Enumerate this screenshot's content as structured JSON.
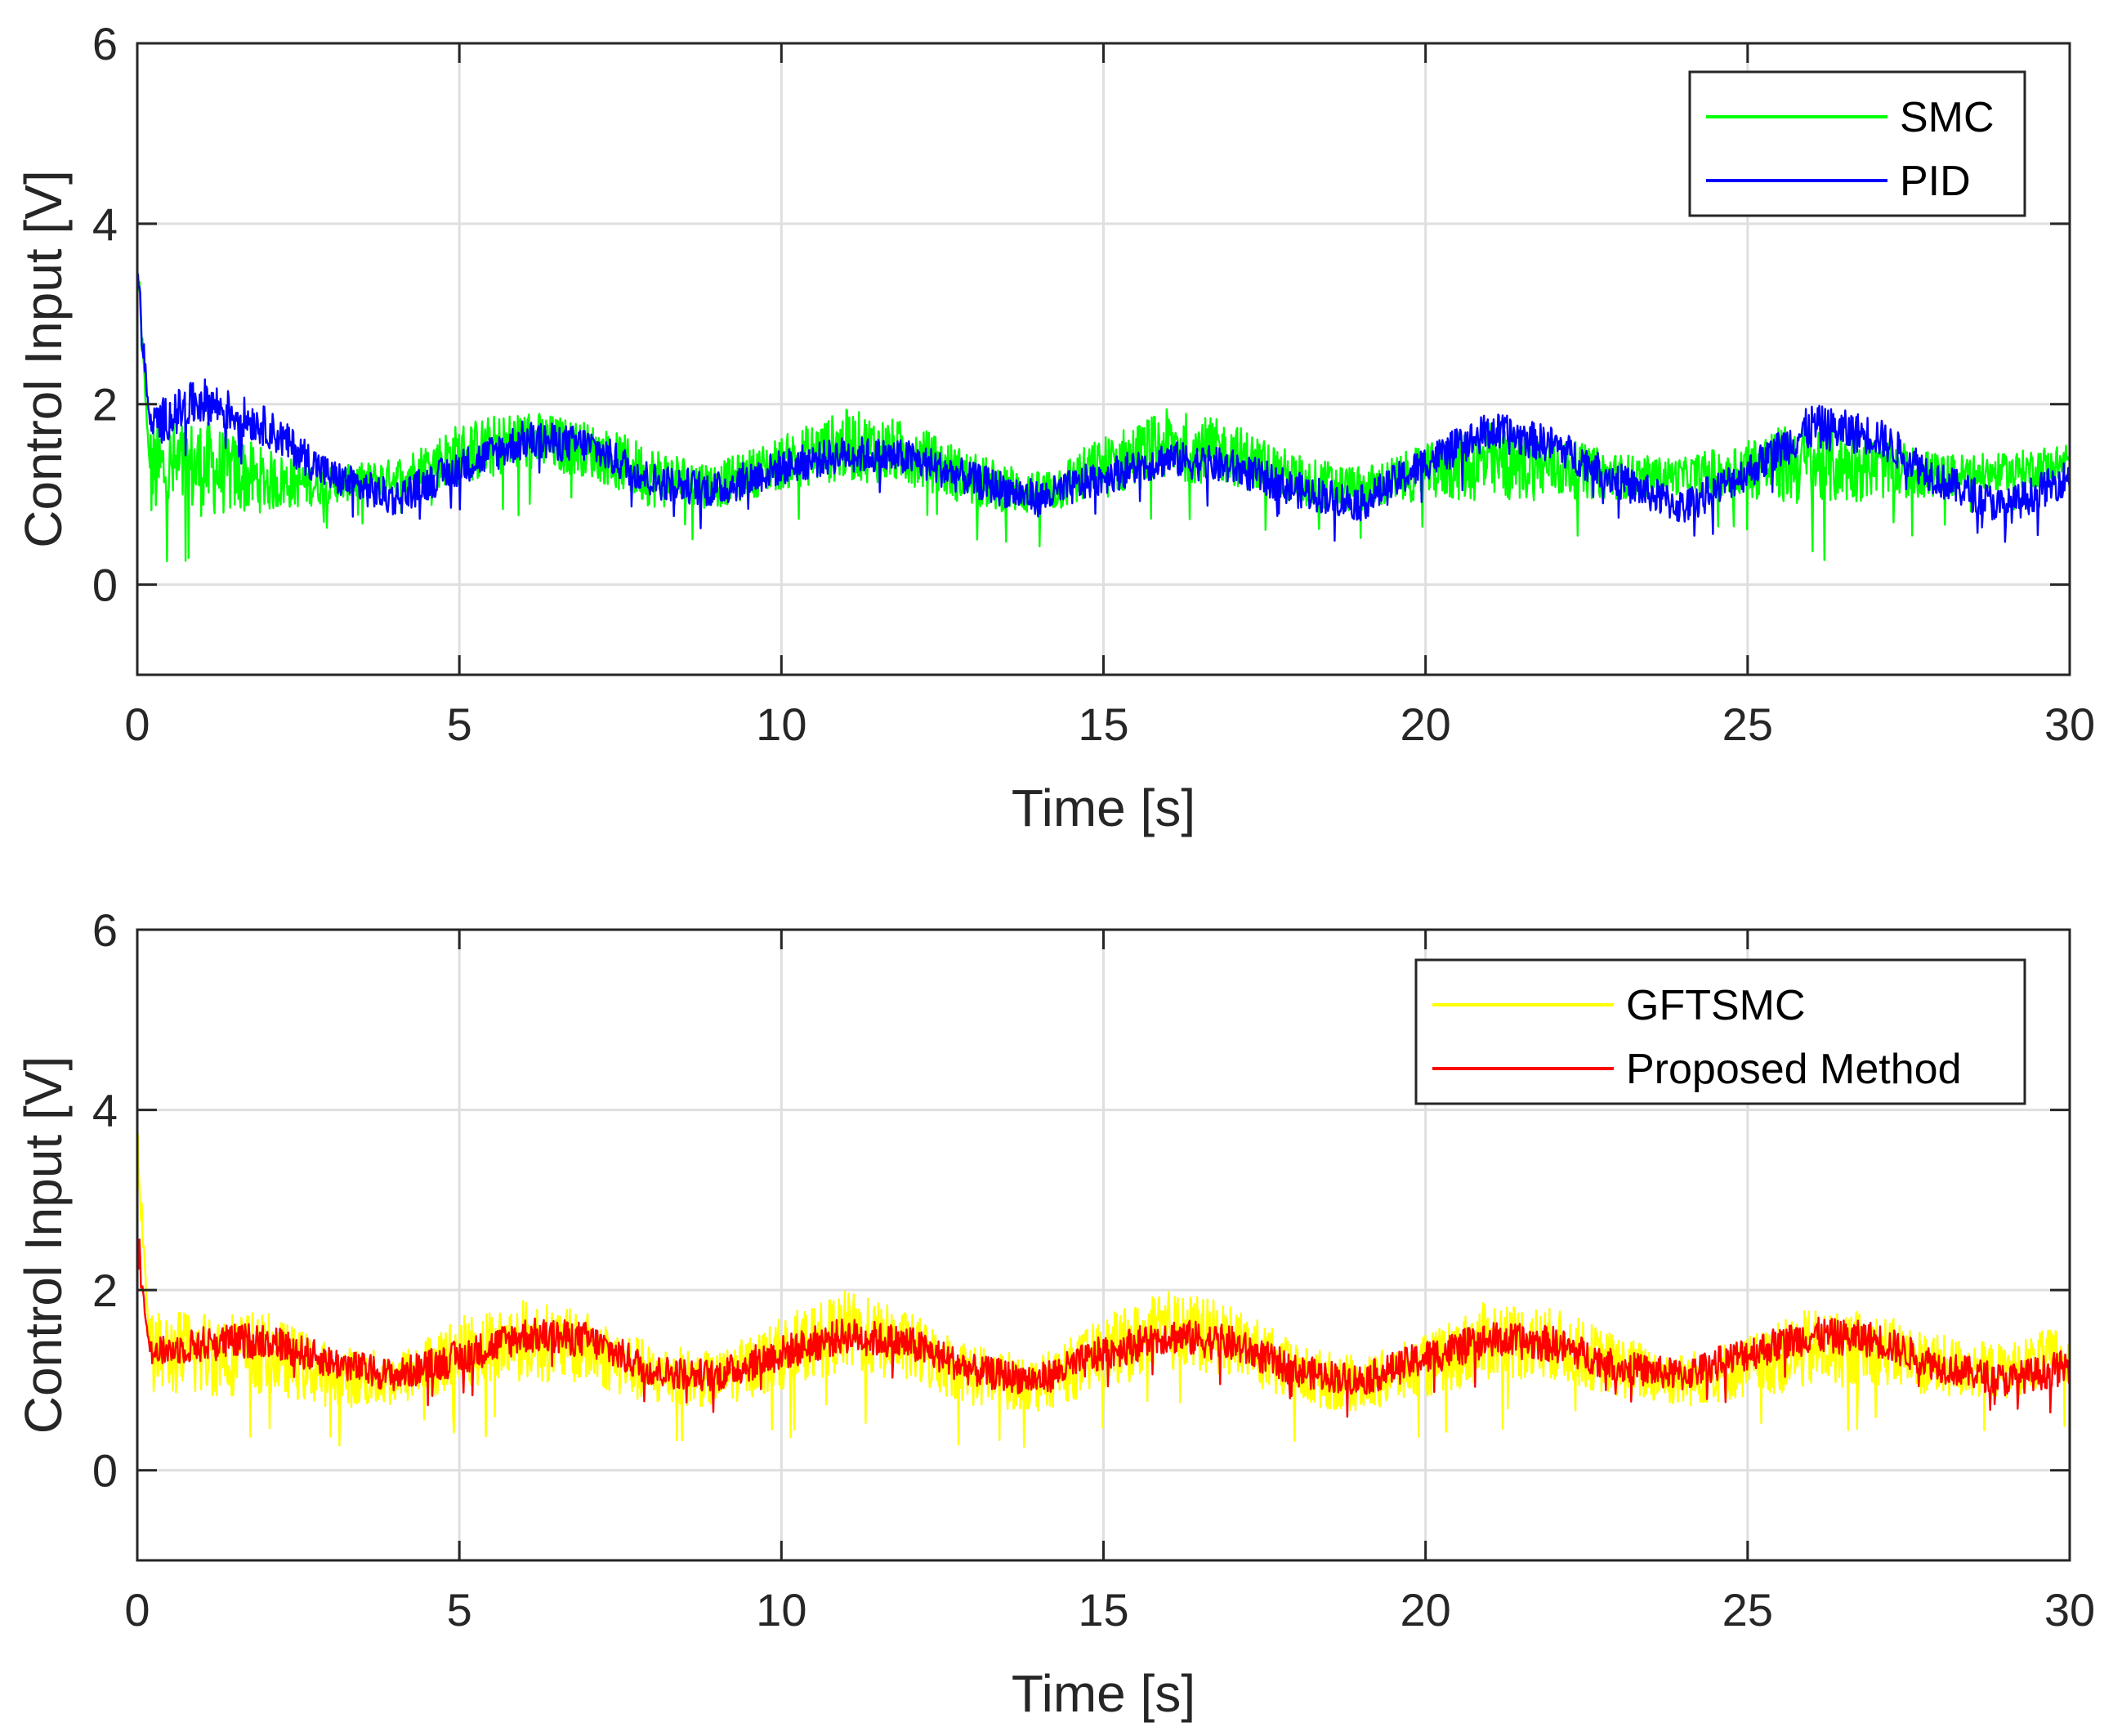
{
  "chart_data": [
    {
      "type": "line",
      "xlabel": "Time [s]",
      "ylabel": "Control Input [V]",
      "xlim": [
        0,
        30
      ],
      "ylim": [
        -1,
        6
      ],
      "xticks": [
        0,
        5,
        10,
        15,
        20,
        25,
        30
      ],
      "yticks": [
        0,
        2,
        4,
        6
      ],
      "grid": true,
      "legend_position": "top-right",
      "series": [
        {
          "name": "SMC",
          "color": "#00ff00",
          "initial_spike": 3.5,
          "x": [
            0.2,
            1.0,
            2.0,
            3.0,
            4.0,
            5.0,
            6.0,
            7.0,
            8.0,
            9.0,
            10.0,
            11.0,
            12.0,
            13.0,
            14.0,
            15.0,
            16.0,
            17.0,
            18.0,
            19.0,
            20.0,
            21.0,
            22.0,
            23.0,
            24.0,
            25.0,
            26.0,
            27.0,
            28.0,
            29.0,
            30.0
          ],
          "mean": [
            1.25,
            1.3,
            1.15,
            1.1,
            1.2,
            1.45,
            1.6,
            1.5,
            1.2,
            1.1,
            1.35,
            1.55,
            1.45,
            1.15,
            1.0,
            1.3,
            1.55,
            1.45,
            1.15,
            1.05,
            1.25,
            1.35,
            1.3,
            1.2,
            1.2,
            1.3,
            1.35,
            1.3,
            1.2,
            1.25,
            1.35
          ],
          "band": [
            0.55,
            0.55,
            0.35,
            0.2,
            0.2,
            0.35,
            0.35,
            0.3,
            0.35,
            0.25,
            0.3,
            0.4,
            0.35,
            0.3,
            0.25,
            0.35,
            0.4,
            0.35,
            0.3,
            0.25,
            0.3,
            0.45,
            0.35,
            0.25,
            0.2,
            0.35,
            0.5,
            0.35,
            0.25,
            0.2,
            0.25
          ]
        },
        {
          "name": "PID",
          "color": "#0000ff",
          "initial_spike": 3.4,
          "x": [
            0.2,
            1.0,
            2.0,
            3.0,
            4.0,
            5.0,
            6.0,
            7.0,
            8.0,
            9.0,
            10.0,
            11.0,
            12.0,
            13.0,
            14.0,
            15.0,
            16.0,
            17.0,
            18.0,
            19.0,
            20.0,
            21.0,
            22.0,
            23.0,
            24.0,
            25.0,
            26.0,
            27.0,
            28.0,
            29.0,
            30.0
          ],
          "mean": [
            1.75,
            2.05,
            1.75,
            1.2,
            0.95,
            1.3,
            1.6,
            1.55,
            1.15,
            1.05,
            1.3,
            1.45,
            1.4,
            1.15,
            0.95,
            1.2,
            1.4,
            1.3,
            1.05,
            0.9,
            1.35,
            1.7,
            1.55,
            1.15,
            0.85,
            1.25,
            1.75,
            1.65,
            1.15,
            0.85,
            1.2
          ],
          "band": [
            0.25,
            0.25,
            0.22,
            0.2,
            0.2,
            0.2,
            0.22,
            0.2,
            0.2,
            0.2,
            0.2,
            0.2,
            0.2,
            0.2,
            0.2,
            0.2,
            0.2,
            0.2,
            0.2,
            0.2,
            0.2,
            0.22,
            0.2,
            0.2,
            0.2,
            0.2,
            0.25,
            0.22,
            0.2,
            0.2,
            0.2
          ]
        }
      ]
    },
    {
      "type": "line",
      "xlabel": "Time [s]",
      "ylabel": "Control Input [V]",
      "xlim": [
        0,
        30
      ],
      "ylim": [
        -1,
        6
      ],
      "xticks": [
        0,
        5,
        10,
        15,
        20,
        25,
        30
      ],
      "yticks": [
        0,
        2,
        4,
        6
      ],
      "grid": true,
      "legend_position": "top-right",
      "series": [
        {
          "name": "GFTSMC",
          "color": "#ffff00",
          "initial_spike": 3.65,
          "x": [
            0.2,
            1.0,
            2.0,
            3.0,
            4.0,
            5.0,
            6.0,
            7.0,
            8.0,
            9.0,
            10.0,
            11.0,
            12.0,
            13.0,
            14.0,
            15.0,
            16.0,
            17.0,
            18.0,
            19.0,
            20.0,
            21.0,
            22.0,
            23.0,
            24.0,
            25.0,
            26.0,
            27.0,
            28.0,
            29.0,
            30.0
          ],
          "mean": [
            1.3,
            1.3,
            1.3,
            1.05,
            1.0,
            1.3,
            1.45,
            1.35,
            1.05,
            1.0,
            1.3,
            1.55,
            1.35,
            1.05,
            0.95,
            1.3,
            1.55,
            1.45,
            1.05,
            0.95,
            1.15,
            1.45,
            1.4,
            1.15,
            1.0,
            1.15,
            1.35,
            1.35,
            1.15,
            1.1,
            1.3
          ],
          "band": [
            0.45,
            0.5,
            0.45,
            0.35,
            0.3,
            0.4,
            0.45,
            0.4,
            0.35,
            0.3,
            0.4,
            0.45,
            0.4,
            0.35,
            0.3,
            0.4,
            0.45,
            0.4,
            0.35,
            0.3,
            0.35,
            0.45,
            0.4,
            0.35,
            0.3,
            0.35,
            0.45,
            0.4,
            0.35,
            0.3,
            0.35
          ]
        },
        {
          "name": "Proposed Method",
          "color": "#ff0000",
          "initial_spike": 2.6,
          "x": [
            0.2,
            1.0,
            2.0,
            3.0,
            4.0,
            5.0,
            6.0,
            7.0,
            8.0,
            9.0,
            10.0,
            11.0,
            12.0,
            13.0,
            14.0,
            15.0,
            16.0,
            17.0,
            18.0,
            19.0,
            20.0,
            21.0,
            22.0,
            23.0,
            24.0,
            25.0,
            26.0,
            27.0,
            28.0,
            29.0,
            30.0
          ],
          "mean": [
            1.3,
            1.4,
            1.45,
            1.2,
            1.05,
            1.25,
            1.5,
            1.45,
            1.1,
            1.05,
            1.3,
            1.5,
            1.4,
            1.1,
            1.0,
            1.3,
            1.5,
            1.4,
            1.1,
            1.0,
            1.25,
            1.45,
            1.4,
            1.15,
            1.05,
            1.3,
            1.5,
            1.45,
            1.15,
            1.0,
            1.15
          ],
          "band": [
            0.15,
            0.2,
            0.2,
            0.18,
            0.18,
            0.2,
            0.2,
            0.2,
            0.18,
            0.18,
            0.2,
            0.2,
            0.2,
            0.18,
            0.18,
            0.2,
            0.2,
            0.2,
            0.18,
            0.18,
            0.2,
            0.2,
            0.2,
            0.18,
            0.18,
            0.2,
            0.2,
            0.2,
            0.18,
            0.18,
            0.2
          ]
        }
      ]
    }
  ]
}
